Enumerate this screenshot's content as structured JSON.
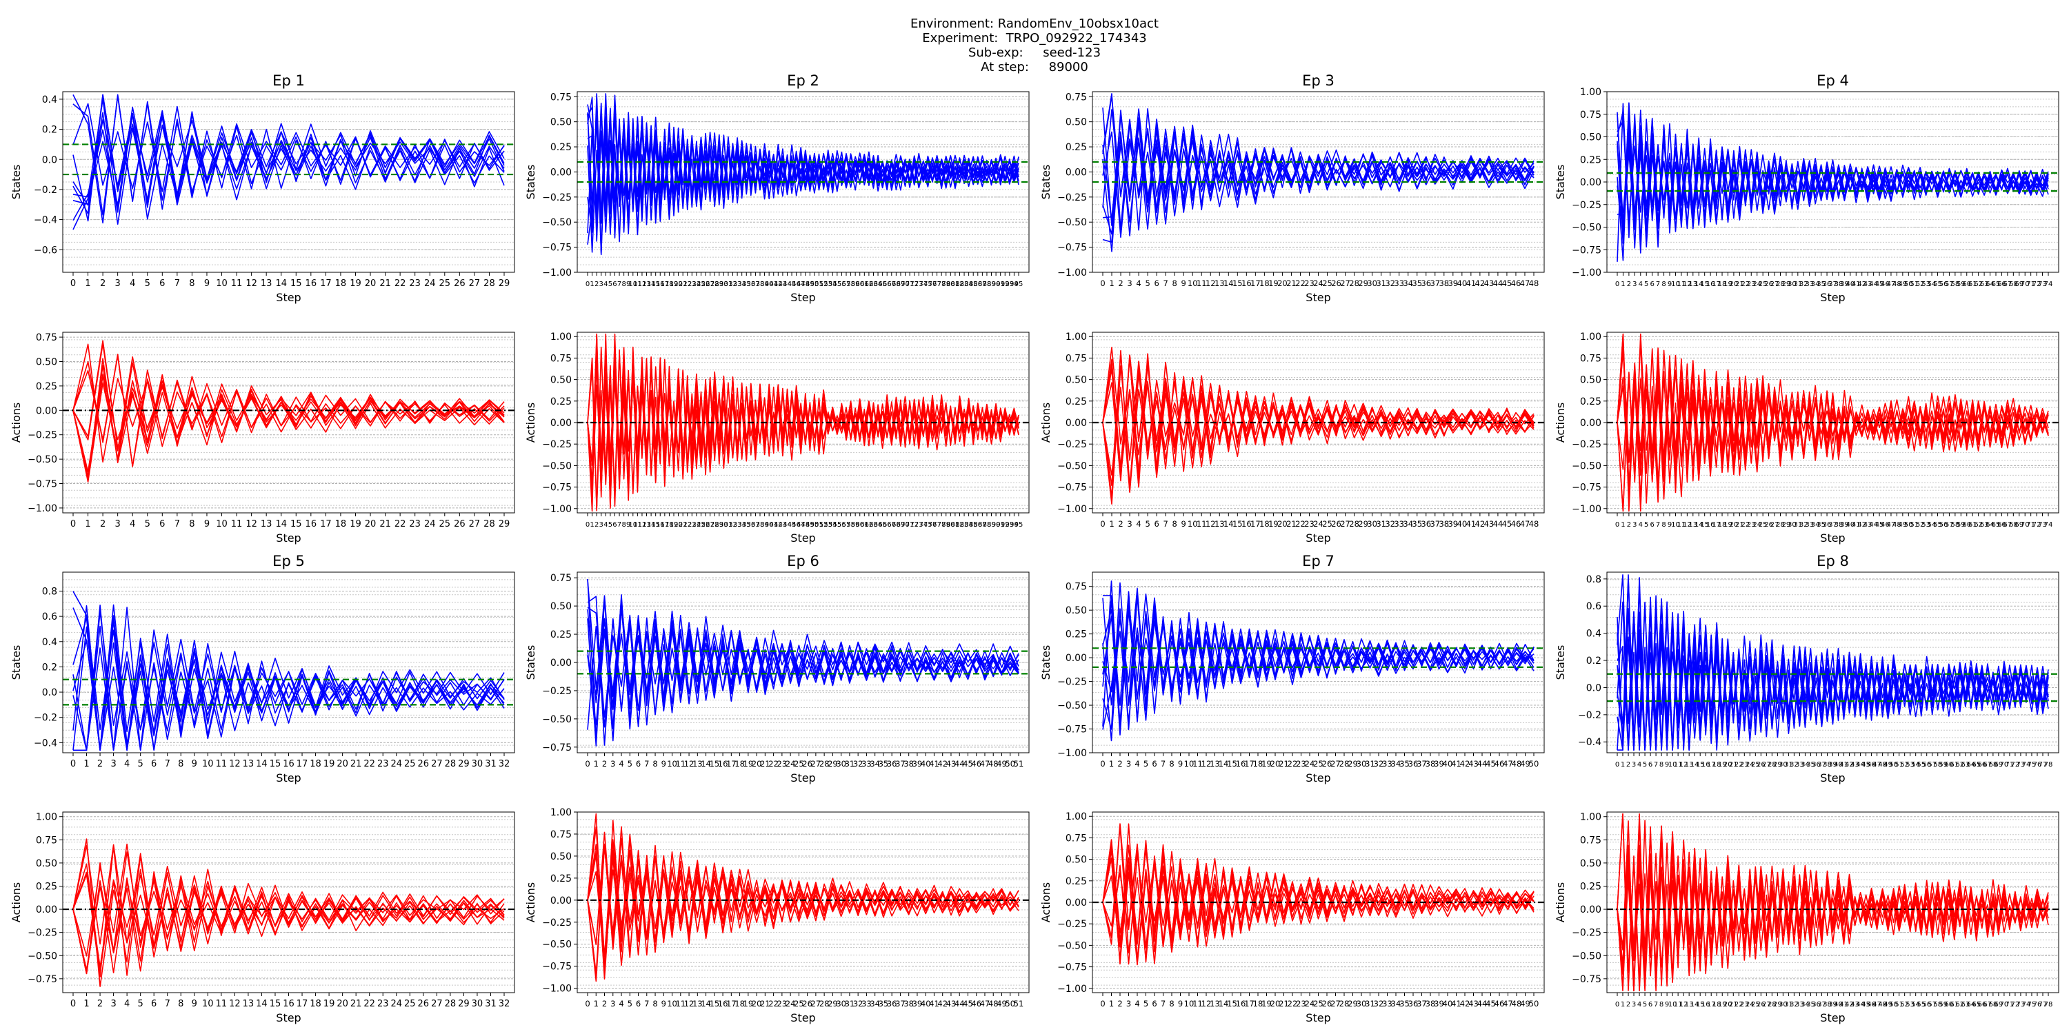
{
  "header": {
    "environment_label": "Environment:",
    "environment": "RandomEnv_10obsx10act",
    "experiment_label": "Experiment:",
    "experiment": "TRPO_092922_174343",
    "subexp_label": "Sub-exp:",
    "subexp": "seed-123",
    "step_label": "At step:",
    "step": "89000"
  },
  "colors": {
    "states": "#0000ff",
    "actions": "#ff0000",
    "threshold": "#008000",
    "zero_line": "#000000",
    "grid": "#b0b0b0"
  },
  "chart_data": [
    {
      "type": "line",
      "title": "Ep 1",
      "variable": "States",
      "xlabel": "Step",
      "ylabel": "States",
      "x_range": [
        0,
        29
      ],
      "ylim": [
        -0.75,
        0.45
      ],
      "yticks": [
        -0.6,
        -0.4,
        -0.2,
        0.0,
        0.2,
        0.4
      ],
      "threshold_lines": [
        0.1,
        -0.1
      ],
      "n_series": 10,
      "amplitude_start": 0.55,
      "amplitude_end": 0.12,
      "grid": "horizontal"
    },
    {
      "type": "line",
      "title": "Ep 2",
      "variable": "States",
      "xlabel": "Step",
      "ylabel": "States",
      "x_range": [
        0,
        95
      ],
      "ylim": [
        -1.0,
        0.8
      ],
      "yticks": [
        -1.0,
        -0.75,
        -0.5,
        -0.25,
        0.0,
        0.25,
        0.5,
        0.75
      ],
      "threshold_lines": [
        0.1,
        -0.1
      ],
      "n_series": 10,
      "amplitude_start": 0.8,
      "amplitude_end": 0.1,
      "grid": "horizontal"
    },
    {
      "type": "line",
      "title": "Ep 3",
      "variable": "States",
      "xlabel": "Step",
      "ylabel": "States",
      "x_range": [
        0,
        48
      ],
      "ylim": [
        -1.0,
        0.8
      ],
      "yticks": [
        -1.0,
        -0.75,
        -0.5,
        -0.25,
        0.0,
        0.25,
        0.5,
        0.75
      ],
      "threshold_lines": [
        0.1,
        -0.1
      ],
      "n_series": 10,
      "amplitude_start": 0.75,
      "amplitude_end": 0.1,
      "grid": "horizontal"
    },
    {
      "type": "line",
      "title": "Ep 4",
      "variable": "States",
      "xlabel": "Step",
      "ylabel": "States",
      "x_range": [
        0,
        74
      ],
      "ylim": [
        -1.0,
        1.0
      ],
      "yticks": [
        -1.0,
        -0.75,
        -0.5,
        -0.25,
        0.0,
        0.25,
        0.5,
        0.75,
        1.0
      ],
      "threshold_lines": [
        0.1,
        -0.1
      ],
      "n_series": 10,
      "amplitude_start": 0.9,
      "amplitude_end": 0.1,
      "grid": "horizontal"
    },
    {
      "type": "line",
      "title": "",
      "variable": "Actions",
      "xlabel": "Step",
      "ylabel": "Actions",
      "x_range": [
        0,
        29
      ],
      "ylim": [
        -1.05,
        0.8
      ],
      "yticks": [
        -1.0,
        -0.75,
        -0.5,
        -0.25,
        0.0,
        0.25,
        0.5,
        0.75
      ],
      "zero_line": 0.0,
      "n_series": 10,
      "amplitude_start": 0.8,
      "amplitude_end": 0.1,
      "grid": "horizontal"
    },
    {
      "type": "line",
      "title": "",
      "variable": "Actions",
      "xlabel": "Step",
      "ylabel": "Actions",
      "x_range": [
        0,
        95
      ],
      "ylim": [
        -1.05,
        1.05
      ],
      "yticks": [
        -1.0,
        -0.75,
        -0.5,
        -0.25,
        0.0,
        0.25,
        0.5,
        0.75,
        1.0
      ],
      "zero_line": 0.0,
      "n_series": 10,
      "amplitude_start": 1.0,
      "amplitude_end": 0.25,
      "grid": "horizontal"
    },
    {
      "type": "line",
      "title": "",
      "variable": "Actions",
      "xlabel": "Step",
      "ylabel": "Actions",
      "x_range": [
        0,
        48
      ],
      "ylim": [
        -1.05,
        1.05
      ],
      "yticks": [
        -1.0,
        -0.75,
        -0.5,
        -0.25,
        0.0,
        0.25,
        0.5,
        0.75,
        1.0
      ],
      "zero_line": 0.0,
      "n_series": 10,
      "amplitude_start": 1.0,
      "amplitude_end": 0.1,
      "grid": "horizontal"
    },
    {
      "type": "line",
      "title": "",
      "variable": "Actions",
      "xlabel": "Step",
      "ylabel": "Actions",
      "x_range": [
        0,
        74
      ],
      "ylim": [
        -1.05,
        1.05
      ],
      "yticks": [
        -1.0,
        -0.75,
        -0.5,
        -0.25,
        0.0,
        0.25,
        0.5,
        0.75,
        1.0
      ],
      "zero_line": 0.0,
      "n_series": 10,
      "amplitude_start": 1.0,
      "amplitude_end": 0.25,
      "grid": "horizontal"
    },
    {
      "type": "line",
      "title": "Ep 5",
      "variable": "States",
      "xlabel": "Step",
      "ylabel": "States",
      "x_range": [
        0,
        32
      ],
      "ylim": [
        -0.48,
        0.95
      ],
      "yticks": [
        -0.4,
        -0.2,
        0.0,
        0.2,
        0.4,
        0.6,
        0.8
      ],
      "threshold_lines": [
        0.1,
        -0.1
      ],
      "n_series": 10,
      "amplitude_start": 0.9,
      "amplitude_end": 0.1,
      "grid": "horizontal"
    },
    {
      "type": "line",
      "title": "Ep 6",
      "variable": "States",
      "xlabel": "Step",
      "ylabel": "States",
      "x_range": [
        0,
        51
      ],
      "ylim": [
        -0.8,
        0.8
      ],
      "yticks": [
        -0.75,
        -0.5,
        -0.25,
        0.0,
        0.25,
        0.5,
        0.75
      ],
      "threshold_lines": [
        0.1,
        -0.1
      ],
      "n_series": 10,
      "amplitude_start": 0.75,
      "amplitude_end": 0.1,
      "grid": "horizontal"
    },
    {
      "type": "line",
      "title": "Ep 7",
      "variable": "States",
      "xlabel": "Step",
      "ylabel": "States",
      "x_range": [
        0,
        50
      ],
      "ylim": [
        -1.0,
        0.9
      ],
      "yticks": [
        -1.0,
        -0.75,
        -0.5,
        -0.25,
        0.0,
        0.25,
        0.5,
        0.75
      ],
      "threshold_lines": [
        0.1,
        -0.1
      ],
      "n_series": 10,
      "amplitude_start": 0.85,
      "amplitude_end": 0.1,
      "grid": "horizontal"
    },
    {
      "type": "line",
      "title": "Ep 8",
      "variable": "States",
      "xlabel": "Step",
      "ylabel": "States",
      "x_range": [
        0,
        78
      ],
      "ylim": [
        -0.48,
        0.85
      ],
      "yticks": [
        -0.4,
        -0.2,
        0.0,
        0.2,
        0.4,
        0.6,
        0.8
      ],
      "threshold_lines": [
        0.1,
        -0.1
      ],
      "n_series": 10,
      "amplitude_start": 0.8,
      "amplitude_end": 0.15,
      "grid": "horizontal"
    },
    {
      "type": "line",
      "title": "",
      "variable": "Actions",
      "xlabel": "Step",
      "ylabel": "Actions",
      "x_range": [
        0,
        32
      ],
      "ylim": [
        -0.9,
        1.05
      ],
      "yticks": [
        -0.75,
        -0.5,
        -0.25,
        0.0,
        0.25,
        0.5,
        0.75,
        1.0
      ],
      "zero_line": 0.0,
      "n_series": 10,
      "amplitude_start": 1.0,
      "amplitude_end": 0.1,
      "grid": "horizontal"
    },
    {
      "type": "line",
      "title": "",
      "variable": "Actions",
      "xlabel": "Step",
      "ylabel": "Actions",
      "x_range": [
        0,
        51
      ],
      "ylim": [
        -1.05,
        1.0
      ],
      "yticks": [
        -1.0,
        -0.75,
        -0.5,
        -0.25,
        0.0,
        0.25,
        0.5,
        0.75,
        1.0
      ],
      "zero_line": 0.0,
      "n_series": 10,
      "amplitude_start": 1.0,
      "amplitude_end": 0.1,
      "grid": "horizontal"
    },
    {
      "type": "line",
      "title": "",
      "variable": "Actions",
      "xlabel": "Step",
      "ylabel": "Actions",
      "x_range": [
        0,
        50
      ],
      "ylim": [
        -1.05,
        1.05
      ],
      "yticks": [
        -1.0,
        -0.75,
        -0.5,
        -0.25,
        0.0,
        0.25,
        0.5,
        0.75,
        1.0
      ],
      "zero_line": 0.0,
      "n_series": 10,
      "amplitude_start": 1.0,
      "amplitude_end": 0.1,
      "grid": "horizontal"
    },
    {
      "type": "line",
      "title": "",
      "variable": "Actions",
      "xlabel": "Step",
      "ylabel": "Actions",
      "x_range": [
        0,
        78
      ],
      "ylim": [
        -0.9,
        1.05
      ],
      "yticks": [
        -0.75,
        -0.5,
        -0.25,
        0.0,
        0.25,
        0.5,
        0.75,
        1.0
      ],
      "zero_line": 0.0,
      "n_series": 10,
      "amplitude_start": 1.0,
      "amplitude_end": 0.25,
      "grid": "horizontal"
    }
  ]
}
